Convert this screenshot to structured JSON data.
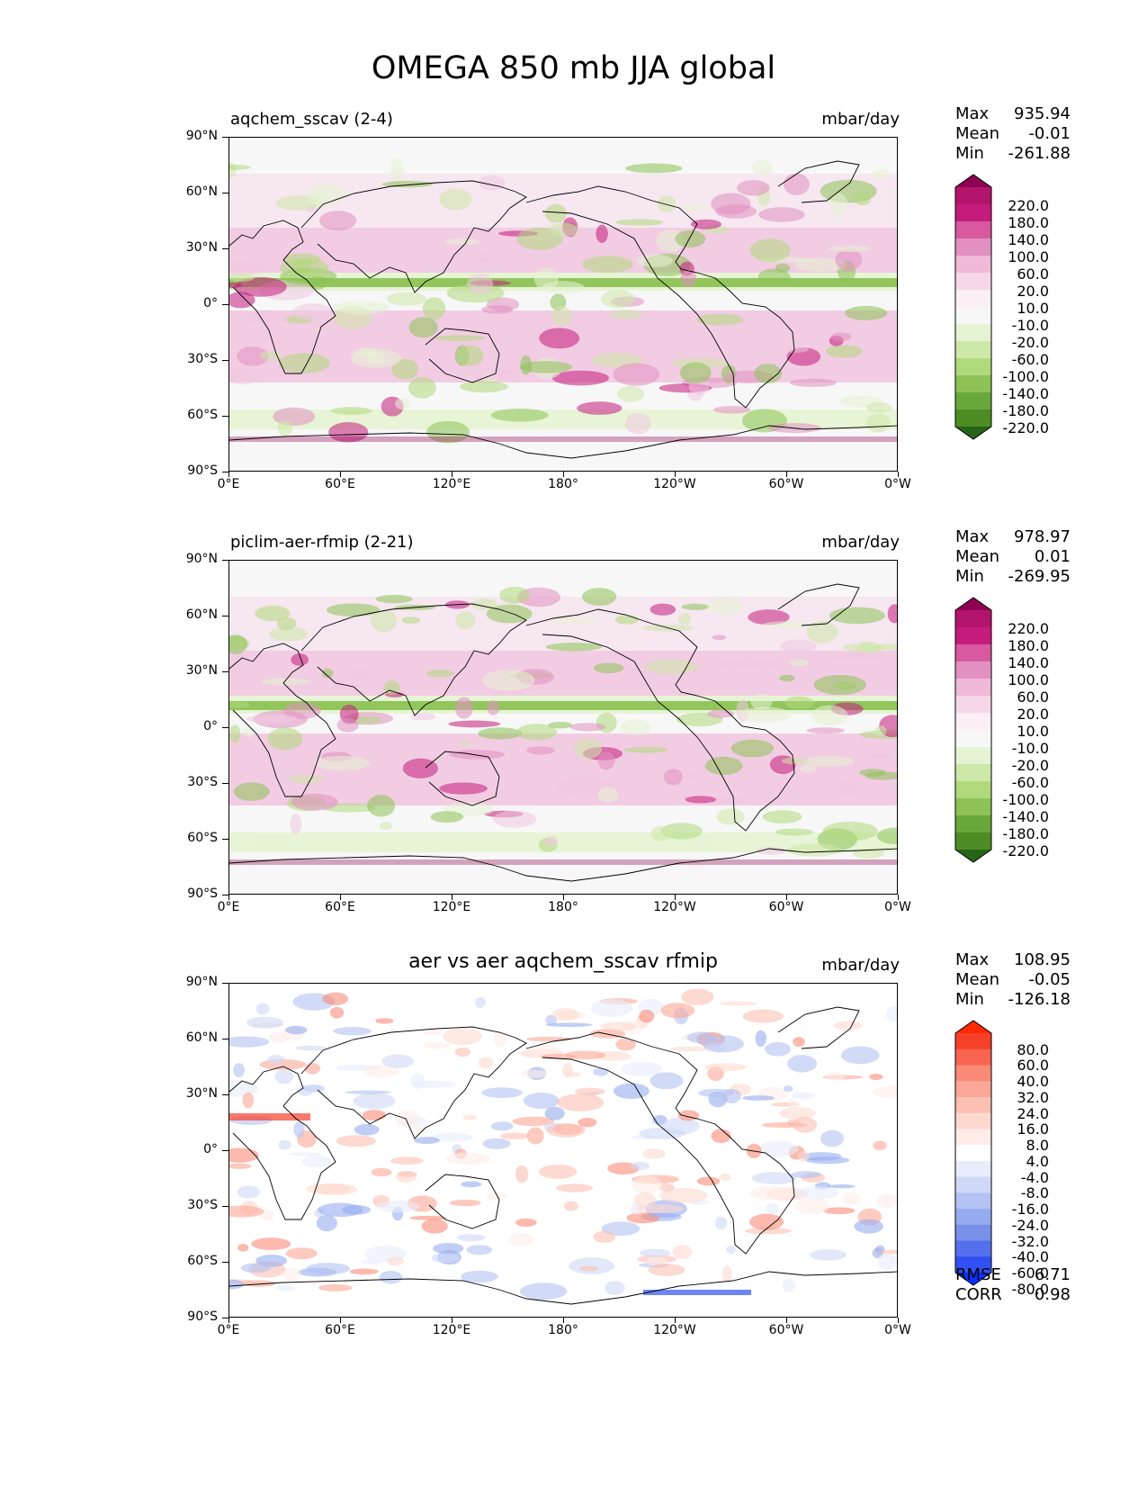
{
  "figure": {
    "title": "OMEGA 850 mb JJA global",
    "units": "mbar/day",
    "lat_labels": [
      "90°N",
      "60°N",
      "30°N",
      "0°",
      "30°S",
      "60°S",
      "90°S"
    ],
    "lon_labels": [
      "0°E",
      "60°E",
      "120°E",
      "180°",
      "120°W",
      "60°W",
      "0°W"
    ]
  },
  "panels": [
    {
      "title": "aqchem_sscav (2-4)",
      "units": "mbar/day",
      "stats": [
        {
          "label": "Max",
          "value": "935.94"
        },
        {
          "label": "Mean",
          "value": "-0.01"
        },
        {
          "label": "Min",
          "value": "-261.88"
        }
      ],
      "colorbar_levels": [
        "220.0",
        "180.0",
        "140.0",
        "100.0",
        "60.0",
        "20.0",
        "10.0",
        "-10.0",
        "-20.0",
        "-60.0",
        "-100.0",
        "-140.0",
        "-180.0",
        "-220.0"
      ],
      "colorbar_colors": [
        "#8e0152",
        "#b3146b",
        "#c51b7d",
        "#d8599f",
        "#e290c1",
        "#efb9d9",
        "#f5d7e8",
        "#fbeef4",
        "#f7f7f7",
        "#e6f3d3",
        "#cde8a8",
        "#b0d97c",
        "#8dc356",
        "#68a83a",
        "#4d8c24",
        "#276419"
      ]
    },
    {
      "title": "piclim-aer-rfmip (2-21)",
      "units": "mbar/day",
      "stats": [
        {
          "label": "Max",
          "value": "978.97"
        },
        {
          "label": "Mean",
          "value": "0.01"
        },
        {
          "label": "Min",
          "value": "-269.95"
        }
      ],
      "colorbar_levels": [
        "220.0",
        "180.0",
        "140.0",
        "100.0",
        "60.0",
        "20.0",
        "10.0",
        "-10.0",
        "-20.0",
        "-60.0",
        "-100.0",
        "-140.0",
        "-180.0",
        "-220.0"
      ],
      "colorbar_colors": [
        "#8e0152",
        "#b3146b",
        "#c51b7d",
        "#d8599f",
        "#e290c1",
        "#efb9d9",
        "#f5d7e8",
        "#fbeef4",
        "#f7f7f7",
        "#e6f3d3",
        "#cde8a8",
        "#b0d97c",
        "#8dc356",
        "#68a83a",
        "#4d8c24",
        "#276419"
      ]
    },
    {
      "title": "aer vs aer aqchem_sscav rfmip",
      "units": "mbar/day",
      "stats": [
        {
          "label": "Max",
          "value": "108.95"
        },
        {
          "label": "Mean",
          "value": "-0.05"
        },
        {
          "label": "Min",
          "value": "-126.18"
        }
      ],
      "colorbar_levels": [
        "80.0",
        "60.0",
        "40.0",
        "32.0",
        "24.0",
        "16.0",
        "8.0",
        "4.0",
        "-4.0",
        "-8.0",
        "-16.0",
        "-24.0",
        "-32.0",
        "-40.0",
        "-60.0",
        "-80.0"
      ],
      "colorbar_colors": [
        "#ff2a00",
        "#f5402a",
        "#f86450",
        "#fa8a76",
        "#fba696",
        "#fcc0b3",
        "#fdd8cf",
        "#feece8",
        "#ffffff",
        "#e8ecfb",
        "#cfd8f7",
        "#b3c2f2",
        "#96abee",
        "#7890ea",
        "#5570ec",
        "#3050f4",
        "#0a30ff"
      ],
      "metrics": [
        {
          "label": "RMSE",
          "value": "6.71"
        },
        {
          "label": "CORR",
          "value": "0.98"
        }
      ]
    }
  ]
}
